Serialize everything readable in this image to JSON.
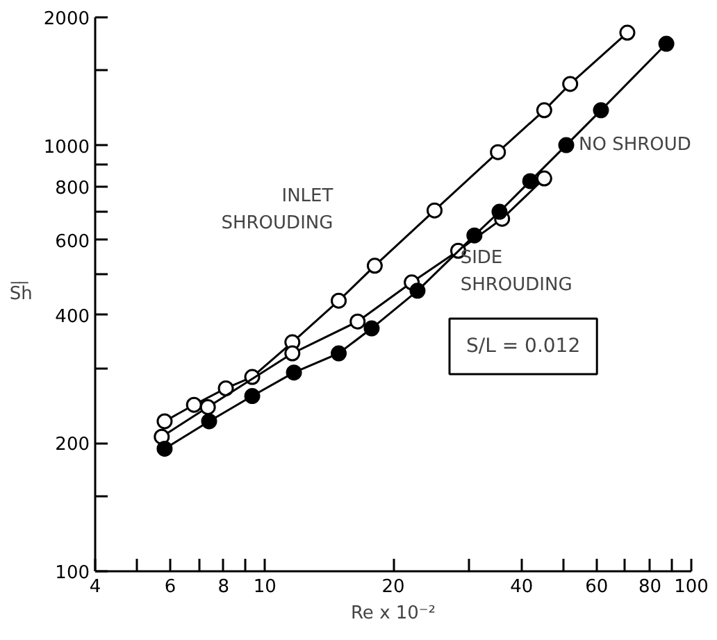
{
  "chart_data": {
    "type": "line",
    "xlabel": "Re x 10⁻²",
    "ylabel": "S̅h̅",
    "log": "xy",
    "marker": "circle",
    "line_style": "solid",
    "grid": false,
    "xlim": [
      4,
      100
    ],
    "ylim": [
      100,
      2000
    ],
    "xticks": [
      4,
      {
        "value": 5,
        "label": null
      },
      6,
      {
        "value": 7,
        "label": null
      },
      8,
      {
        "value": 9,
        "label": null
      },
      10,
      20,
      {
        "value": 30,
        "label": null
      },
      40,
      {
        "value": 50,
        "label": null
      },
      60,
      {
        "value": 70,
        "label": null
      },
      80,
      {
        "value": 90,
        "label": null
      },
      100
    ],
    "yticks": [
      100,
      {
        "value": 150,
        "label": null
      },
      200,
      {
        "value": 300,
        "label": null
      },
      400,
      {
        "value": 500,
        "label": null
      },
      600,
      {
        "value": 700,
        "label": null
      },
      800,
      {
        "value": 900,
        "label": null
      },
      1000,
      {
        "value": 1500,
        "label": null
      },
      2000
    ],
    "series": [
      {
        "name": "INLET SHROUDING",
        "color": "#ffffff",
        "x": [
          5.82,
          6.82,
          8.1,
          9.34,
          11.6,
          14.9,
          18.1,
          25.0,
          35.2,
          45.2,
          52.0,
          70.8
        ],
        "values": [
          225,
          246,
          269,
          286,
          345,
          432,
          522,
          704,
          965,
          1210,
          1395,
          1841
        ]
      },
      {
        "name": "SIDE SHROUDING",
        "color": "#ffffff",
        "x": [
          5.73,
          7.35,
          11.6,
          16.5,
          22.1,
          28.4,
          36.0,
          45.2
        ],
        "values": [
          207,
          243,
          325,
          386,
          477,
          566,
          673,
          837
        ]
      },
      {
        "name": "NO SHROUD",
        "color": "#000000",
        "x": [
          5.82,
          7.4,
          9.34,
          11.7,
          14.9,
          17.8,
          22.8,
          31.0,
          35.5,
          41.9,
          50.9,
          61.4,
          87.4
        ],
        "values": [
          194,
          225,
          258,
          293,
          325,
          372,
          456,
          615,
          699,
          825,
          1002,
          1210,
          1734
        ]
      }
    ],
    "annotations": [
      "S/L = 0.012"
    ]
  }
}
